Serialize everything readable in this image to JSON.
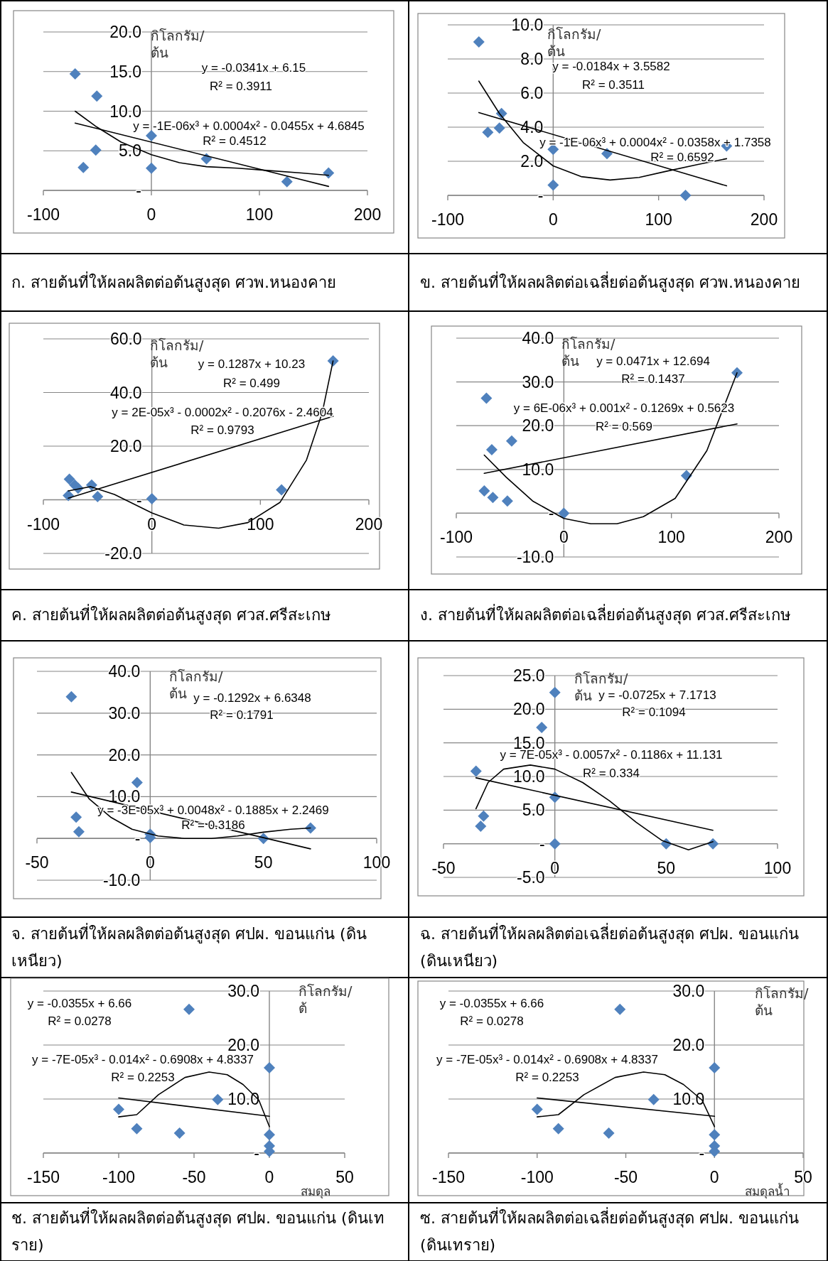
{
  "chart_data": [
    {
      "type": "scatter",
      "title": "ก. สายต้นที่ให้ผลผลิตต่อต้นสูงสุด ศวพ.หนองคาย",
      "ylabel": "กิโลกรัม/ต้น",
      "xlim": [
        -100,
        200
      ],
      "ylim": [
        0,
        20
      ],
      "xticks": [
        -100,
        0,
        100,
        200
      ],
      "yticks": [
        {
          "value": 0,
          "label": "-"
        },
        {
          "value": 5,
          "label": "5.0"
        },
        {
          "value": 10,
          "label": "10.0"
        },
        {
          "value": 15,
          "label": "15.0"
        },
        {
          "value": 20,
          "label": "20.0"
        }
      ],
      "grid": "y",
      "series": [
        {
          "type": "scatter",
          "marker": "diamond",
          "color": "#4f81bd",
          "x": [
            -70.6,
            -50.5,
            -51.5,
            -63,
            0,
            0,
            51,
            125.5,
            164
          ],
          "values": [
            14.7,
            11.9,
            5.1,
            2.9,
            6.9,
            2.8,
            4.0,
            1.1,
            2.2
          ]
        },
        {
          "type": "line",
          "marker": "none",
          "color": "#000000",
          "x": [
            -70.6,
            164
          ],
          "values": [
            8.5,
            0.5
          ]
        },
        {
          "type": "line",
          "marker": "none",
          "color": "#000000",
          "x": [
            -70.6,
            -50.5,
            -28,
            0,
            26,
            51,
            80,
            109,
            139,
            164
          ],
          "values": [
            10.0,
            8.0,
            6.1,
            4.5,
            3.5,
            3.0,
            2.8,
            2.5,
            2.2,
            1.9
          ]
        }
      ],
      "annotations": [
        "y = -0.0341x + 6.15",
        "R² = 0.3911",
        "y = -1E-06x³ + 0.0004x² - 0.0455x + 4.6845",
        "R² = 0.4512"
      ]
    },
    {
      "type": "scatter",
      "title": "ข. สายต้นที่ให้ผลผลิตต่อเฉลี่ยต่อต้นสูงสุด ศวพ.หนองคาย",
      "ylabel": "กิโลกรัม/ต้น",
      "xlim": [
        -100,
        200
      ],
      "ylim": [
        0,
        10
      ],
      "xticks": [
        -100,
        0,
        100,
        200
      ],
      "yticks": [
        {
          "value": 0,
          "label": "-"
        },
        {
          "value": 2,
          "label": "2.0"
        },
        {
          "value": 4,
          "label": "4.0"
        },
        {
          "value": 6,
          "label": "6.0"
        },
        {
          "value": 8,
          "label": "8.0"
        },
        {
          "value": 10,
          "label": "10.0"
        }
      ],
      "grid": "y",
      "series": [
        {
          "type": "scatter",
          "marker": "diamond",
          "color": "#4f81bd",
          "x": [
            -70.5,
            -62,
            -51,
            -49,
            0,
            0,
            51,
            125.5,
            164.5
          ],
          "values": [
            9.0,
            3.7,
            3.95,
            4.8,
            2.7,
            0.6,
            2.45,
            0.0,
            2.9
          ]
        },
        {
          "type": "line",
          "marker": "none",
          "color": "#000000",
          "x": [
            -70.5,
            164.5
          ],
          "values": [
            4.86,
            0.56
          ]
        },
        {
          "type": "line",
          "marker": "none",
          "color": "#000000",
          "x": [
            -70.5,
            -51,
            -28.5,
            0,
            26.5,
            54,
            81.5,
            106.5,
            136.5,
            164.5
          ],
          "values": [
            6.7,
            4.8,
            3.1,
            1.73,
            1.1,
            0.9,
            1.05,
            1.4,
            1.8,
            2.15
          ]
        }
      ],
      "annotations": [
        "y = -0.0184x + 3.5582",
        "R² = 0.3511",
        "y = -1E-06x³ + 0.0004x² - 0.0358x + 1.7358",
        "R² = 0.6592"
      ]
    },
    {
      "type": "scatter",
      "title": "ค. สายต้นที่ให้ผลผลิตต่อต้นสูงสุด ศวส.ศรีสะเกษ",
      "ylabel": "กิโลกรัม/ต้น",
      "xlim": [
        -100,
        200
      ],
      "ylim": [
        -20,
        60
      ],
      "xticks": [
        -100,
        0,
        100,
        200
      ],
      "yticks": [
        {
          "value": -20,
          "label": "-20.0"
        },
        {
          "value": 0,
          "label": "-"
        },
        {
          "value": 20,
          "label": "20.0"
        },
        {
          "value": 40,
          "label": "40.0"
        },
        {
          "value": 60,
          "label": "60.0"
        }
      ],
      "grid": "y",
      "series": [
        {
          "type": "scatter",
          "marker": "diamond",
          "color": "#4f81bd",
          "x": [
            -76,
            -71,
            -68,
            -77,
            -55.5,
            -50,
            0,
            119.5,
            167
          ],
          "values": [
            7.7,
            5.5,
            4.3,
            1.6,
            5.5,
            1.2,
            0.4,
            3.7,
            51.8
          ]
        },
        {
          "type": "line",
          "marker": "none",
          "color": "#000000",
          "x": [
            -77,
            167
          ],
          "values": [
            0.6,
            31.1
          ]
        },
        {
          "type": "line",
          "marker": "none",
          "color": "#000000",
          "x": [
            -77,
            -56.5,
            -34.5,
            0,
            29.5,
            61.5,
            88.5,
            118,
            142.5,
            157,
            167
          ],
          "values": [
            3.3,
            4.9,
            2.0,
            -4.9,
            -9.4,
            -10.6,
            -8.5,
            -1.0,
            14.8,
            32.5,
            51.8
          ]
        }
      ],
      "annotations": [
        "y = 0.1287x + 10.23",
        "R² = 0.499",
        "y = 2E-05x³ - 0.0002x² - 0.2076x - 2.4604",
        "R² = 0.9793"
      ]
    },
    {
      "type": "scatter",
      "title": "ง. สายต้นที่ให้ผลผลิตต่อเฉลี่ยต่อต้นสูงสุด ศวส.ศรีสะเกษ",
      "ylabel": "กิโลกรัม/ต้น",
      "xlim": [
        -100,
        200
      ],
      "ylim": [
        -10,
        40
      ],
      "xticks": [
        -100,
        0,
        100,
        200
      ],
      "yticks": [
        {
          "value": -10,
          "label": "-10.0"
        },
        {
          "value": 0,
          "label": "-"
        },
        {
          "value": 10,
          "label": "10.0"
        },
        {
          "value": 20,
          "label": "20.0"
        },
        {
          "value": 30,
          "label": "30.0"
        },
        {
          "value": 40,
          "label": "40.0"
        }
      ],
      "grid": "y",
      "series": [
        {
          "type": "scatter",
          "marker": "diamond",
          "color": "#4f81bd",
          "x": [
            -72,
            -67,
            -48.5,
            -74,
            -66,
            -52.5,
            0,
            114,
            161
          ],
          "values": [
            26.3,
            14.5,
            16.5,
            5.1,
            3.6,
            2.8,
            0,
            8.6,
            32.1
          ]
        },
        {
          "type": "line",
          "marker": "none",
          "color": "#000000",
          "x": [
            -74,
            161
          ],
          "values": [
            9.1,
            20.4
          ]
        },
        {
          "type": "line",
          "marker": "none",
          "color": "#000000",
          "x": [
            -74,
            -53.5,
            -29,
            0,
            25,
            49.5,
            74,
            103.5,
            133,
            161
          ],
          "values": [
            13.3,
            8.2,
            2.8,
            -1.2,
            -2.4,
            -2.4,
            -0.8,
            3.4,
            14.3,
            32.1
          ]
        }
      ],
      "annotations": [
        "y = 0.0471x + 12.694",
        "R² = 0.1437",
        "y = 6E-06x³ + 0.001x² - 0.1269x + 0.5623",
        "R² = 0.569"
      ]
    },
    {
      "type": "scatter",
      "title": "จ. สายต้นที่ให้ผลผลิตต่อต้นสูงสุด ศปผ. ขอนแก่น (ดินเหนียว)",
      "ylabel": "กิโลกรัม/ต้น",
      "xlim": [
        -50,
        100
      ],
      "ylim": [
        -10,
        40
      ],
      "xticks": [
        -50,
        0,
        50,
        100
      ],
      "yticks": [
        {
          "value": -10,
          "label": "-10.0"
        },
        {
          "value": 0,
          "label": "-"
        },
        {
          "value": 10,
          "label": "10.0"
        },
        {
          "value": 20,
          "label": "20.0"
        },
        {
          "value": 30,
          "label": "30.0"
        },
        {
          "value": 40,
          "label": "40.0"
        }
      ],
      "grid": "y",
      "series": [
        {
          "type": "scatter",
          "marker": "diamond",
          "color": "#4f81bd",
          "x": [
            -34.8,
            -5.8,
            -32.7,
            -31.5,
            0,
            0,
            50,
            70.8
          ],
          "values": [
            33.9,
            13.4,
            5.1,
            1.6,
            1.0,
            0.2,
            0,
            2.5
          ]
        },
        {
          "type": "line",
          "marker": "none",
          "color": "#000000",
          "x": [
            -34.8,
            70.8
          ],
          "values": [
            11.1,
            -2.5
          ]
        },
        {
          "type": "line",
          "marker": "none",
          "color": "#000000",
          "x": [
            -34.8,
            -27,
            -17.5,
            -8,
            3.5,
            15,
            27,
            38.5,
            50,
            62,
            70.8
          ],
          "values": [
            15.8,
            9.5,
            5.1,
            2.2,
            0.6,
            0,
            0,
            0.6,
            1.5,
            2.2,
            2.5
          ]
        }
      ],
      "annotations": [
        "y = -0.1292x + 6.6348",
        "R² = 0.1791",
        "y = -3E-05x³ + 0.0048x² - 0.1885x + 2.2469",
        "R² = 0.3186"
      ]
    },
    {
      "type": "scatter",
      "title": "ฉ. สายต้นที่ให้ผลผลิตต่อเฉลี่ยต่อต้นสูงสุด ศปผ. ขอนแก่น (ดินเหนียว)",
      "ylabel": "กิโลกรัม/ต้น",
      "xlim": [
        -50,
        100
      ],
      "ylim": [
        -5,
        25
      ],
      "xticks": [
        -50,
        0,
        50,
        100
      ],
      "yticks": [
        {
          "value": -5,
          "label": "-5.0"
        },
        {
          "value": 0,
          "label": "-"
        },
        {
          "value": 5,
          "label": "5.0"
        },
        {
          "value": 10,
          "label": "10.0"
        },
        {
          "value": 15,
          "label": "15.0"
        },
        {
          "value": 20,
          "label": "20.0"
        },
        {
          "value": 25,
          "label": "25.0"
        }
      ],
      "grid": "y",
      "series": [
        {
          "type": "scatter",
          "marker": "diamond",
          "color": "#4f81bd",
          "x": [
            0,
            -5.9,
            -35.4,
            -32,
            -33.3,
            0,
            0,
            50,
            71
          ],
          "values": [
            22.5,
            17.3,
            10.8,
            4.1,
            2.6,
            6.9,
            0,
            0,
            0
          ]
        },
        {
          "type": "line",
          "marker": "none",
          "color": "#000000",
          "x": [
            -35.4,
            71
          ],
          "values": [
            9.8,
            2.0
          ]
        },
        {
          "type": "line",
          "marker": "none",
          "color": "#000000",
          "x": [
            -35.4,
            -30,
            -23,
            -11,
            0,
            12.5,
            24.5,
            36.5,
            48,
            60,
            71
          ],
          "values": [
            5.2,
            9.1,
            11.1,
            11.7,
            11.1,
            9.1,
            6.4,
            3.2,
            0.5,
            -0.9,
            0.3
          ]
        }
      ],
      "annotations": [
        "y = -0.0725x + 7.1713",
        "R² = 0.1094",
        "y = 7E-05x³ - 0.0057x² - 0.1186x + 11.131",
        "R² = 0.334"
      ]
    },
    {
      "type": "scatter",
      "title": "ช. สายต้นที่ให้ผลผลิตต่อต้นสูงสุด ศปผ. ขอนแก่น (ดินเทราย)",
      "ylabel": "กิโลกรัม/ต้",
      "xlabel": "สมดุล",
      "xlim": [
        -150,
        50
      ],
      "ylim": [
        0,
        30
      ],
      "xticks": [
        -150,
        -100,
        -50,
        0,
        50
      ],
      "yticks": [
        {
          "value": 0,
          "label": "-"
        },
        {
          "value": 10,
          "label": "10.0"
        },
        {
          "value": 20,
          "label": "20.0"
        },
        {
          "value": 30,
          "label": "30.0"
        }
      ],
      "grid": "y",
      "series": [
        {
          "type": "scatter",
          "marker": "diamond",
          "color": "#4f81bd",
          "x": [
            -100,
            -88,
            -59.6,
            -53.3,
            -34.3,
            0,
            0,
            0,
            0
          ],
          "values": [
            8.1,
            4.5,
            3.7,
            26.6,
            9.9,
            15.8,
            3.4,
            1.3,
            0.3
          ]
        },
        {
          "type": "line",
          "marker": "none",
          "color": "#000000",
          "x": [
            -100,
            0
          ],
          "values": [
            10.2,
            6.8
          ]
        },
        {
          "type": "line",
          "marker": "none",
          "color": "#000000",
          "x": [
            -100,
            -88,
            -73.6,
            -56,
            -40,
            -28,
            -17.5,
            -7,
            0
          ],
          "values": [
            6.7,
            7.1,
            10.8,
            14.0,
            15.0,
            14.5,
            12.7,
            9.8,
            4.9
          ]
        }
      ],
      "annotations": [
        "y = -0.0355x + 6.66",
        "R² = 0.0278",
        "y = -7E-05x³ - 0.014x² - 0.6908x + 4.8337",
        "R² = 0.2253"
      ]
    },
    {
      "type": "scatter",
      "title": "ซ. สายต้นที่ให้ผลผลิตต่อเฉลี่ยต่อต้นสูงสุด ศปผ. ขอนแก่น (ดินเทราย)",
      "ylabel": "กิโลกรัม/ต้น",
      "xlabel": "สมดุลน้ำ",
      "xlim": [
        -150,
        50
      ],
      "ylim": [
        0,
        30
      ],
      "xticks": [
        -150,
        -100,
        -50,
        0,
        50
      ],
      "yticks": [
        {
          "value": 0,
          "label": "-"
        },
        {
          "value": 10,
          "label": "10.0"
        },
        {
          "value": 20,
          "label": "20.0"
        },
        {
          "value": 30,
          "label": "30.0"
        }
      ],
      "grid": "y",
      "series": [
        {
          "type": "scatter",
          "marker": "diamond",
          "color": "#4f81bd",
          "x": [
            -100,
            -88,
            -59.6,
            -53.3,
            -34.3,
            0,
            0,
            0,
            0
          ],
          "values": [
            8.1,
            4.5,
            3.7,
            26.6,
            9.9,
            15.8,
            3.4,
            1.3,
            0.3
          ]
        },
        {
          "type": "line",
          "marker": "none",
          "color": "#000000",
          "x": [
            -100,
            0
          ],
          "values": [
            10.2,
            6.8
          ]
        },
        {
          "type": "line",
          "marker": "none",
          "color": "#000000",
          "x": [
            -100,
            -88,
            -73.6,
            -56,
            -40,
            -28,
            -17.5,
            -7,
            0
          ],
          "values": [
            6.7,
            7.1,
            10.8,
            14.0,
            15.0,
            14.5,
            12.7,
            9.8,
            4.9
          ]
        }
      ],
      "annotations": [
        "y = -0.0355x + 6.66",
        "R² = 0.0278",
        "y = -7E-05x³ - 0.014x² - 0.6908x + 4.8337",
        "R² = 0.2253"
      ]
    }
  ]
}
